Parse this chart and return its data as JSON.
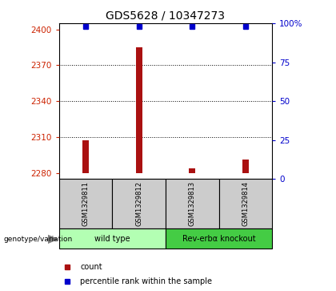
{
  "title": "GDS5628 / 10347273",
  "samples": [
    "GSM1329811",
    "GSM1329812",
    "GSM1329813",
    "GSM1329814"
  ],
  "counts": [
    2307,
    2385,
    2284,
    2291
  ],
  "percentile_ranks": [
    98,
    98,
    98,
    98
  ],
  "ylim_left": [
    2275,
    2405
  ],
  "ylim_right": [
    0,
    100
  ],
  "yticks_left": [
    2280,
    2310,
    2340,
    2370,
    2400
  ],
  "yticks_right": [
    0,
    25,
    50,
    75,
    100
  ],
  "ytick_labels_right": [
    "0",
    "25",
    "50",
    "75",
    "100%"
  ],
  "bar_color": "#aa1111",
  "marker_color": "#0000cc",
  "bar_baseline": 2280,
  "bar_width": 0.12,
  "groups": [
    {
      "label": "wild type",
      "indices": [
        0,
        1
      ],
      "color": "#b3ffb3"
    },
    {
      "label": "Rev-erbα knockout",
      "indices": [
        2,
        3
      ],
      "color": "#44cc44"
    }
  ],
  "group_row_label": "genotype/variation",
  "legend_items": [
    {
      "label": "count",
      "color": "#aa1111"
    },
    {
      "label": "percentile rank within the sample",
      "color": "#0000cc"
    }
  ],
  "title_fontsize": 10,
  "tick_fontsize": 7.5,
  "left_axis_color": "#cc2200",
  "right_axis_color": "#0000cc",
  "sample_area_color": "#cccccc",
  "dotted_lines": [
    2310,
    2340,
    2370
  ]
}
